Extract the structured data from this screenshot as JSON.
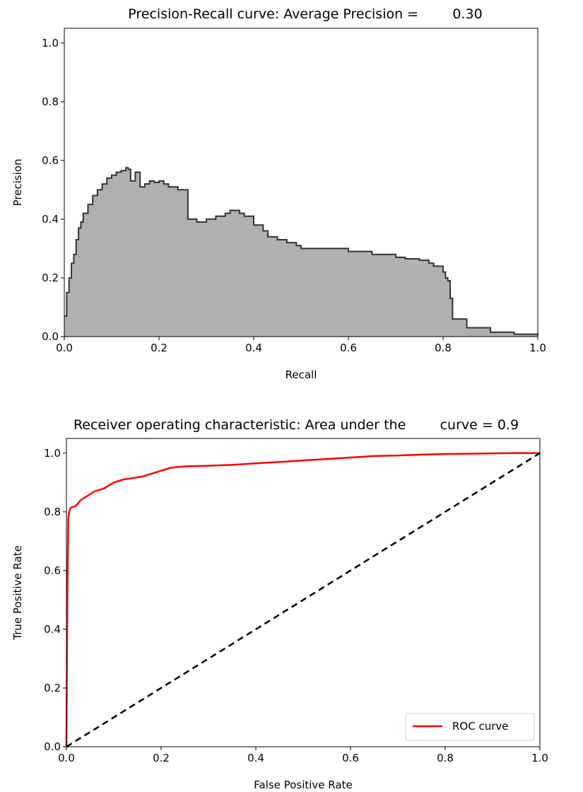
{
  "chart_data": [
    {
      "type": "area",
      "title": "Precision-Recall curve: Average Precision =        0.30",
      "xlabel": "Recall",
      "ylabel": "Precision",
      "xlim": [
        0,
        1
      ],
      "ylim": [
        0,
        1.05
      ],
      "xticks": [
        "0.0",
        "0.2",
        "0.4",
        "0.6",
        "0.8",
        "1.0"
      ],
      "yticks": [
        "0.0",
        "0.2",
        "0.4",
        "0.6",
        "0.8",
        "1.0"
      ],
      "grid": false,
      "fill_color": "#b0b0b0",
      "line_color": "#333333",
      "series": [
        {
          "x": [
            0.0,
            0.005,
            0.01,
            0.015,
            0.02,
            0.025,
            0.03,
            0.035,
            0.04,
            0.05,
            0.06,
            0.07,
            0.08,
            0.09,
            0.1,
            0.11,
            0.12,
            0.13,
            0.135,
            0.14,
            0.15,
            0.16,
            0.17,
            0.18,
            0.19,
            0.2,
            0.21,
            0.22,
            0.24,
            0.26,
            0.261,
            0.28,
            0.3,
            0.32,
            0.34,
            0.35,
            0.37,
            0.38,
            0.4,
            0.42,
            0.43,
            0.45,
            0.47,
            0.49,
            0.5,
            0.55,
            0.6,
            0.62,
            0.65,
            0.7,
            0.72,
            0.75,
            0.77,
            0.78,
            0.8,
            0.805,
            0.81,
            0.815,
            0.82,
            0.85,
            0.9,
            0.95,
            1.0
          ],
          "y": [
            0.07,
            0.15,
            0.2,
            0.25,
            0.28,
            0.33,
            0.37,
            0.39,
            0.42,
            0.45,
            0.48,
            0.5,
            0.52,
            0.54,
            0.55,
            0.56,
            0.565,
            0.575,
            0.57,
            0.53,
            0.56,
            0.51,
            0.52,
            0.53,
            0.525,
            0.53,
            0.52,
            0.51,
            0.5,
            0.5,
            0.4,
            0.39,
            0.4,
            0.41,
            0.42,
            0.43,
            0.42,
            0.41,
            0.38,
            0.36,
            0.34,
            0.33,
            0.32,
            0.31,
            0.3,
            0.3,
            0.29,
            0.29,
            0.28,
            0.27,
            0.265,
            0.26,
            0.25,
            0.24,
            0.22,
            0.2,
            0.19,
            0.13,
            0.06,
            0.03,
            0.015,
            0.008,
            0.004
          ]
        }
      ]
    },
    {
      "type": "line",
      "title": "Receiver operating characteristic: Area under the        curve = 0.9",
      "xlabel": "False Positive Rate",
      "ylabel": "True Positive Rate",
      "xlim": [
        0,
        1
      ],
      "ylim": [
        0,
        1.05
      ],
      "xticks": [
        "0.0",
        "0.2",
        "0.4",
        "0.6",
        "0.8",
        "1.0"
      ],
      "yticks": [
        "0.0",
        "0.2",
        "0.4",
        "0.6",
        "0.8",
        "1.0"
      ],
      "grid": false,
      "legend_position": "lower-right",
      "series": [
        {
          "name": "ROC curve",
          "color": "#ff0000",
          "style": "solid",
          "x": [
            0.0,
            0.002,
            0.004,
            0.006,
            0.008,
            0.01,
            0.02,
            0.03,
            0.04,
            0.05,
            0.06,
            0.07,
            0.08,
            0.09,
            0.1,
            0.12,
            0.14,
            0.16,
            0.18,
            0.2,
            0.22,
            0.25,
            0.3,
            0.35,
            0.4,
            0.45,
            0.5,
            0.55,
            0.6,
            0.65,
            0.7,
            0.75,
            0.8,
            0.85,
            0.9,
            0.95,
            0.98,
            1.0
          ],
          "y": [
            0.0,
            0.5,
            0.78,
            0.8,
            0.81,
            0.815,
            0.82,
            0.84,
            0.85,
            0.86,
            0.87,
            0.875,
            0.88,
            0.89,
            0.9,
            0.91,
            0.915,
            0.92,
            0.93,
            0.94,
            0.95,
            0.955,
            0.957,
            0.96,
            0.965,
            0.97,
            0.975,
            0.98,
            0.985,
            0.99,
            0.992,
            0.995,
            0.997,
            0.998,
            0.999,
            1.0,
            1.0,
            1.0
          ]
        },
        {
          "color": "#000000",
          "style": "dashed",
          "x": [
            0.0,
            1.0
          ],
          "y": [
            0.0,
            1.0
          ]
        }
      ]
    }
  ]
}
